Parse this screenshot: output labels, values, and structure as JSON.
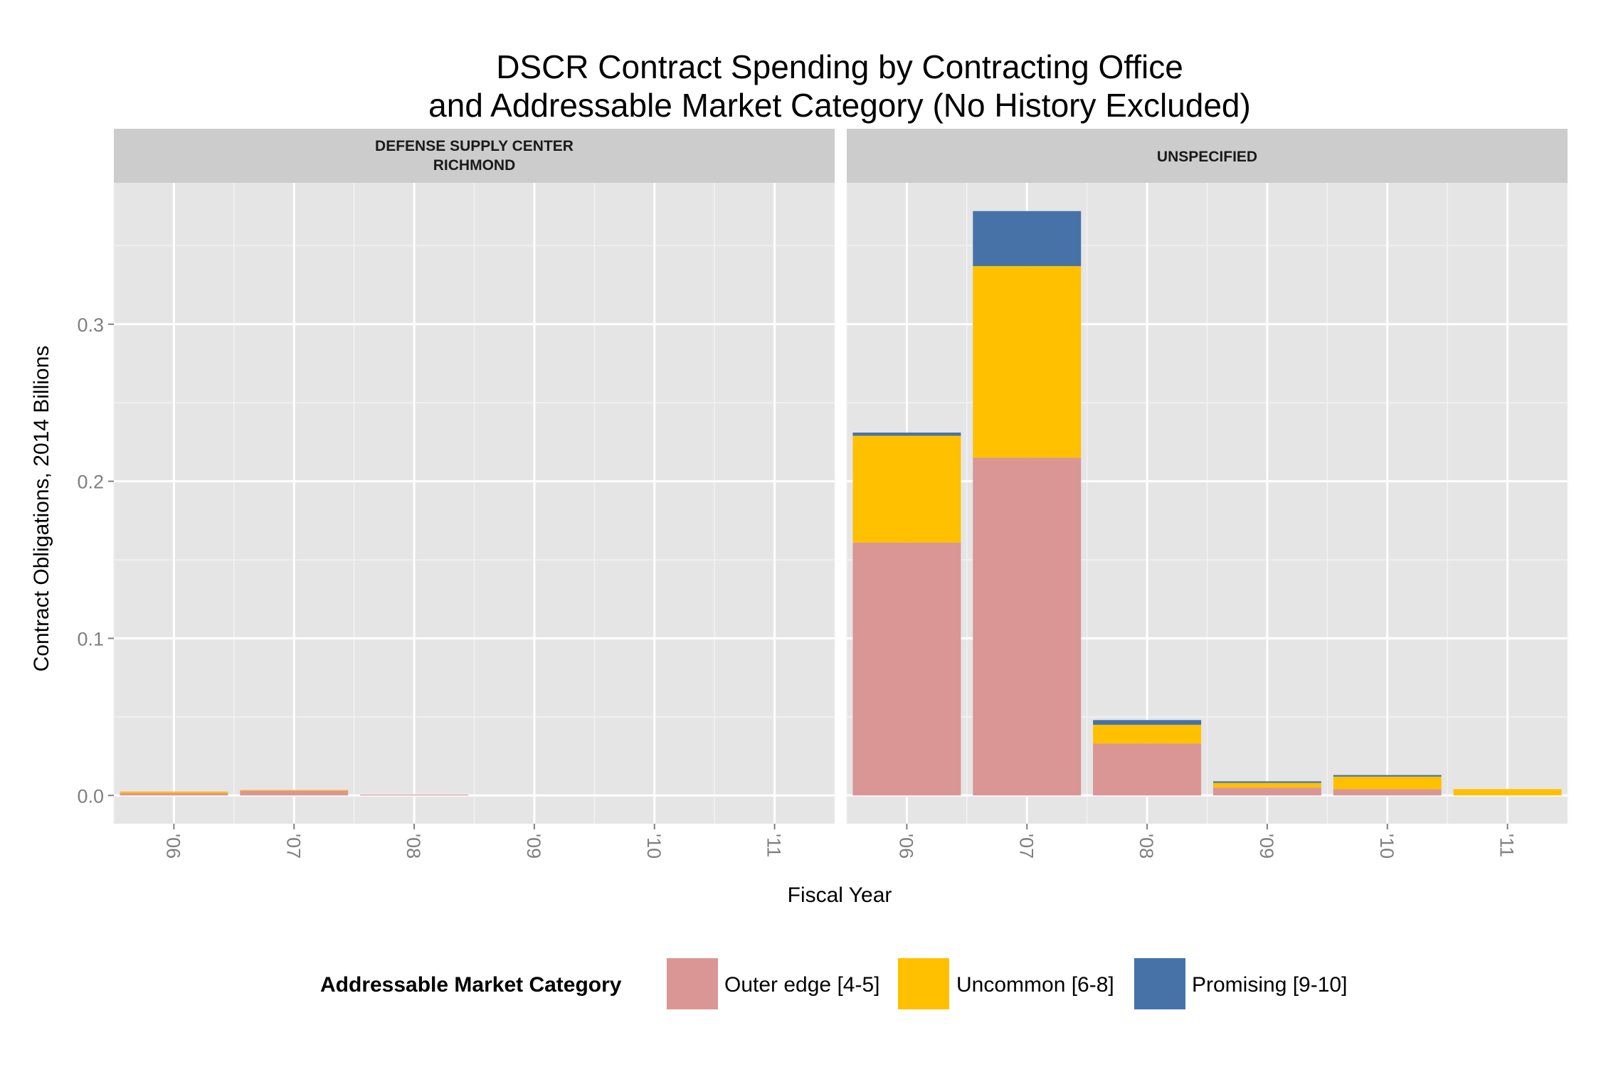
{
  "chart_data": {
    "type": "bar",
    "stacked": true,
    "title_line1": "DSCR Contract Spending by Contracting Office",
    "title_line2": "and Addressable Market Category (No History Excluded)",
    "xlabel": "Fiscal Year",
    "ylabel": "Contract Obligations, 2014 Billions",
    "ylim": [
      -0.018,
      0.39
    ],
    "yticks": [
      0.0,
      0.1,
      0.2,
      0.3
    ],
    "ytick_labels": [
      "0.0",
      "0.1",
      "0.2",
      "0.3"
    ],
    "categories": [
      "'06",
      "'07",
      "'08",
      "'09",
      "'10",
      "'11"
    ],
    "grid": true,
    "legend": {
      "title": "Addressable Market Category",
      "placement": "bottom",
      "entries": [
        {
          "name": "Outer edge [4-5]",
          "color": "#d99694"
        },
        {
          "name": "Uncommon [6-8]",
          "color": "#ffc000"
        },
        {
          "name": "Promising [9-10]",
          "color": "#4672a8"
        }
      ]
    },
    "panels": [
      {
        "strip_line1": "DEFENSE SUPPLY CENTER",
        "strip_line2": "RICHMOND",
        "series": [
          {
            "name": "Outer edge [4-5]",
            "values": [
              0.0015,
              0.003,
              0.0005,
              0,
              0,
              0
            ]
          },
          {
            "name": "Uncommon [6-8]",
            "values": [
              0.001,
              0.0005,
              0,
              0,
              0,
              0
            ]
          },
          {
            "name": "Promising [9-10]",
            "values": [
              0,
              0,
              0,
              0,
              0,
              0
            ]
          }
        ]
      },
      {
        "strip_line1": "UNSPECIFIED",
        "strip_line2": "",
        "series": [
          {
            "name": "Outer edge [4-5]",
            "values": [
              0.161,
              0.215,
              0.033,
              0.005,
              0.004,
              0.0
            ]
          },
          {
            "name": "Uncommon [6-8]",
            "values": [
              0.068,
              0.122,
              0.012,
              0.003,
              0.008,
              0.004
            ]
          },
          {
            "name": "Promising [9-10]",
            "values": [
              0.002,
              0.035,
              0.003,
              0.001,
              0.001,
              0.0
            ]
          }
        ]
      }
    ]
  }
}
